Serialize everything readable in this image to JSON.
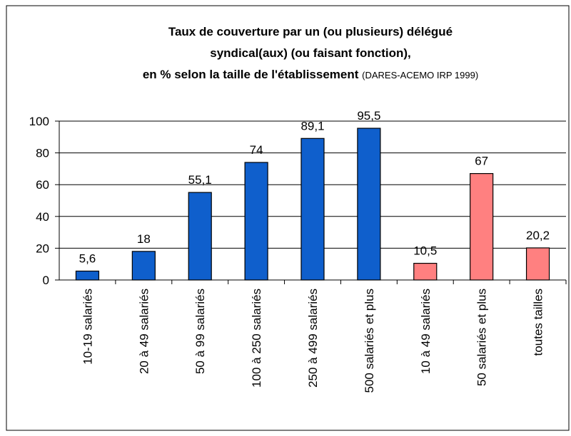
{
  "chart_data": {
    "type": "bar",
    "title": [
      "Taux de couverture par un (ou plusieurs) délégué",
      "syndical(aux) (ou faisant fonction),",
      "en % selon la taille de l'établissement"
    ],
    "source": "(DARES-ACEMO IRP 1999)",
    "categories": [
      "10-19 salariés",
      "20 à 49 salariés",
      "50 à 99 salariés",
      "100 à 250 salariés",
      "250 à 499 salariés",
      "500 salariés et plus",
      "10 à 49 salariés",
      "50 salariés et plus",
      "toutes tailles"
    ],
    "values": [
      5.6,
      18,
      55.1,
      74,
      89.1,
      95.5,
      10.5,
      67,
      20.2
    ],
    "value_labels": [
      "5,6",
      "18",
      "55,1",
      "74",
      "89,1",
      "95,5",
      "10,5",
      "67",
      "20,2"
    ],
    "colors": [
      "#0f5fcc",
      "#0f5fcc",
      "#0f5fcc",
      "#0f5fcc",
      "#0f5fcc",
      "#0f5fcc",
      "#ff8080",
      "#ff8080",
      "#ff8080"
    ],
    "ylim": [
      0,
      100
    ],
    "yticks": [
      0,
      20,
      40,
      60,
      80,
      100
    ],
    "grid": true
  }
}
